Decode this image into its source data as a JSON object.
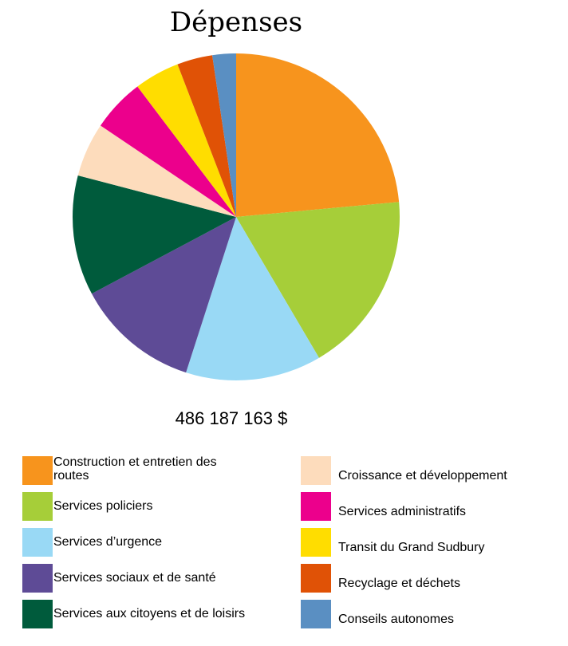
{
  "chart_data": {
    "type": "pie",
    "title": "Dépenses",
    "total_label": "486 187 163 $",
    "slices": [
      {
        "label": "Construction et entretien des routes",
        "value": 24.2,
        "color": "#F7941D"
      },
      {
        "label": "Services policiers",
        "value": 18.5,
        "color": "#A6CE39"
      },
      {
        "label": "Services d’urgence",
        "value": 13.8,
        "color": "#99D9F5"
      },
      {
        "label": "Services sociaux et de santé",
        "value": 12.6,
        "color": "#5E4B96"
      },
      {
        "label": "Services aux citoyens et de loisirs",
        "value": 12.2,
        "color": "#005B3C"
      },
      {
        "label": "Croissance et développement",
        "value": 5.5,
        "color": "#FDDCBC"
      },
      {
        "label": "Services administratifs",
        "value": 5.4,
        "color": "#EC008C"
      },
      {
        "label": "Transit du Grand Sudbury",
        "value": 4.6,
        "color": "#FFDD00"
      },
      {
        "label": "Recyclage et déchets",
        "value": 3.6,
        "color": "#E05206"
      },
      {
        "label": "Conseils autonomes",
        "value": 2.4,
        "color": "#5A8FC2"
      }
    ]
  }
}
